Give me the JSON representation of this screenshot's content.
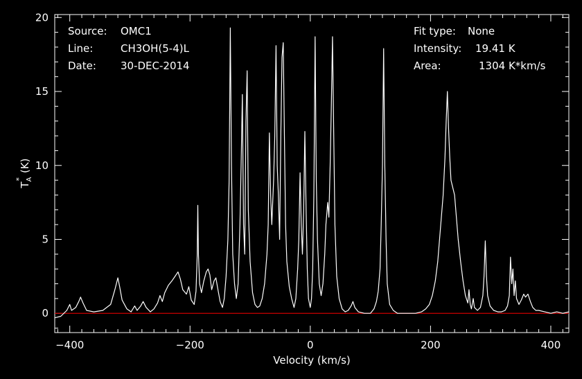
{
  "header_left": {
    "source_label": "Source:",
    "source_value": "OMC1",
    "line_label": "Line:",
    "line_value": "CH3OH(5-4)L",
    "date_label": "Date:",
    "date_value": "30-DEC-2014"
  },
  "header_right": {
    "fit_label": "Fit type:",
    "fit_value": "None",
    "intensity_label": "Intensity:",
    "intensity_value": "19.41 K",
    "area_label": "Area:",
    "area_value": "1304 K*km/s"
  },
  "colors": {
    "background": "#000000",
    "spectrum": "#ffffff",
    "baseline": "#cc0000",
    "axes": "#ffffff"
  },
  "chart_data": {
    "type": "line",
    "xlabel": "Velocity (km/s)",
    "ylabel": "T",
    "ylabel_sub": "A",
    "ylabel_sup": "*",
    "ylabel_unit": "(K)",
    "xlim": [
      -425,
      430
    ],
    "ylim": [
      -1.3,
      20.2
    ],
    "xticks": [
      -400,
      -200,
      0,
      200,
      400
    ],
    "xtick_labels": [
      "−400",
      "−200",
      "0",
      "200",
      "400"
    ],
    "yticks": [
      0,
      5,
      10,
      15,
      20
    ],
    "ytick_labels": [
      "0",
      "5",
      "10",
      "15",
      "20"
    ],
    "baseline_y": 0,
    "series": [
      {
        "points": [
          [
            -425,
            -0.3
          ],
          [
            -415,
            -0.2
          ],
          [
            -405,
            0.2
          ],
          [
            -400,
            0.6
          ],
          [
            -397,
            0.2
          ],
          [
            -390,
            0.4
          ],
          [
            -385,
            0.8
          ],
          [
            -382,
            1.1
          ],
          [
            -378,
            0.7
          ],
          [
            -372,
            0.2
          ],
          [
            -360,
            0.1
          ],
          [
            -345,
            0.2
          ],
          [
            -332,
            0.6
          ],
          [
            -325,
            1.6
          ],
          [
            -320,
            2.4
          ],
          [
            -317,
            1.8
          ],
          [
            -313,
            0.9
          ],
          [
            -305,
            0.3
          ],
          [
            -298,
            0.1
          ],
          [
            -292,
            0.5
          ],
          [
            -288,
            0.2
          ],
          [
            -282,
            0.5
          ],
          [
            -278,
            0.8
          ],
          [
            -273,
            0.4
          ],
          [
            -266,
            0.1
          ],
          [
            -260,
            0.3
          ],
          [
            -254,
            0.7
          ],
          [
            -250,
            1.2
          ],
          [
            -246,
            0.8
          ],
          [
            -242,
            1.4
          ],
          [
            -236,
            1.9
          ],
          [
            -230,
            2.2
          ],
          [
            -225,
            2.5
          ],
          [
            -220,
            2.8
          ],
          [
            -216,
            2.3
          ],
          [
            -212,
            1.6
          ],
          [
            -206,
            1.3
          ],
          [
            -202,
            1.8
          ],
          [
            -198,
            0.9
          ],
          [
            -193,
            0.6
          ],
          [
            -190,
            1.5
          ],
          [
            -188,
            4.0
          ],
          [
            -187,
            7.3
          ],
          [
            -186,
            4.0
          ],
          [
            -184,
            2.0
          ],
          [
            -181,
            1.4
          ],
          [
            -177,
            2.2
          ],
          [
            -173,
            2.8
          ],
          [
            -170,
            3.0
          ],
          [
            -167,
            2.6
          ],
          [
            -164,
            1.6
          ],
          [
            -160,
            2.2
          ],
          [
            -157,
            2.4
          ],
          [
            -154,
            1.7
          ],
          [
            -150,
            0.8
          ],
          [
            -146,
            0.4
          ],
          [
            -143,
            1.0
          ],
          [
            -140,
            2.5
          ],
          [
            -137,
            5.0
          ],
          [
            -135,
            9.0
          ],
          [
            -133,
            19.3
          ],
          [
            -131,
            10.0
          ],
          [
            -129,
            4.0
          ],
          [
            -126,
            2.0
          ],
          [
            -123,
            1.0
          ],
          [
            -120,
            2.0
          ],
          [
            -117,
            6.0
          ],
          [
            -115,
            10.0
          ],
          [
            -113,
            14.8
          ],
          [
            -111,
            6.0
          ],
          [
            -109,
            4.0
          ],
          [
            -107,
            13.0
          ],
          [
            -105,
            16.4
          ],
          [
            -103,
            7.0
          ],
          [
            -100,
            3.5
          ],
          [
            -96,
            1.4
          ],
          [
            -92,
            0.6
          ],
          [
            -88,
            0.4
          ],
          [
            -84,
            0.5
          ],
          [
            -80,
            1.0
          ],
          [
            -76,
            2.0
          ],
          [
            -72,
            4.0
          ],
          [
            -70,
            6.0
          ],
          [
            -68,
            12.2
          ],
          [
            -66,
            8.0
          ],
          [
            -64,
            6.0
          ],
          [
            -61,
            9.0
          ],
          [
            -59,
            12.0
          ],
          [
            -57,
            18.1
          ],
          [
            -55,
            10.0
          ],
          [
            -53,
            8.0
          ],
          [
            -51,
            5.0
          ],
          [
            -49,
            12.0
          ],
          [
            -47,
            17.3
          ],
          [
            -45,
            18.3
          ],
          [
            -43,
            12.0
          ],
          [
            -41,
            6.0
          ],
          [
            -39,
            3.5
          ],
          [
            -35,
            1.8
          ],
          [
            -31,
            1.0
          ],
          [
            -27,
            0.4
          ],
          [
            -24,
            1.0
          ],
          [
            -21,
            3.0
          ],
          [
            -19,
            5.0
          ],
          [
            -17,
            9.5
          ],
          [
            -15,
            6.0
          ],
          [
            -13,
            4.0
          ],
          [
            -11,
            7.0
          ],
          [
            -9,
            12.3
          ],
          [
            -7,
            7.0
          ],
          [
            -5,
            3.0
          ],
          [
            -3,
            1.0
          ],
          [
            0,
            0.4
          ],
          [
            2,
            1.0
          ],
          [
            4,
            3.0
          ],
          [
            6,
            8.0
          ],
          [
            8,
            18.7
          ],
          [
            10,
            9.0
          ],
          [
            12,
            5.0
          ],
          [
            15,
            2.0
          ],
          [
            18,
            1.2
          ],
          [
            21,
            2.0
          ],
          [
            24,
            4.0
          ],
          [
            26,
            6.0
          ],
          [
            29,
            7.5
          ],
          [
            31,
            6.5
          ],
          [
            33,
            10.0
          ],
          [
            35,
            14.0
          ],
          [
            37,
            18.7
          ],
          [
            39,
            12.0
          ],
          [
            41,
            6.0
          ],
          [
            44,
            2.5
          ],
          [
            48,
            1.0
          ],
          [
            53,
            0.3
          ],
          [
            58,
            0.1
          ],
          [
            63,
            0.2
          ],
          [
            68,
            0.5
          ],
          [
            71,
            0.8
          ],
          [
            74,
            0.4
          ],
          [
            80,
            0.1
          ],
          [
            90,
            0.0
          ],
          [
            100,
            0.0
          ],
          [
            106,
            0.3
          ],
          [
            110,
            0.8
          ],
          [
            113,
            1.5
          ],
          [
            116,
            3.0
          ],
          [
            118,
            6.0
          ],
          [
            120,
            10.0
          ],
          [
            122,
            17.9
          ],
          [
            124,
            10.0
          ],
          [
            126,
            5.0
          ],
          [
            128,
            2.0
          ],
          [
            132,
            0.6
          ],
          [
            138,
            0.2
          ],
          [
            145,
            0.0
          ],
          [
            160,
            0.0
          ],
          [
            175,
            0.0
          ],
          [
            185,
            0.1
          ],
          [
            192,
            0.3
          ],
          [
            198,
            0.6
          ],
          [
            203,
            1.2
          ],
          [
            208,
            2.2
          ],
          [
            212,
            3.5
          ],
          [
            215,
            5.0
          ],
          [
            218,
            6.5
          ],
          [
            221,
            8.0
          ],
          [
            224,
            10.5
          ],
          [
            226,
            13.0
          ],
          [
            228,
            15.0
          ],
          [
            230,
            12.5
          ],
          [
            232,
            10.5
          ],
          [
            234,
            9.0
          ],
          [
            237,
            8.5
          ],
          [
            240,
            8.0
          ],
          [
            243,
            6.5
          ],
          [
            246,
            5.0
          ],
          [
            250,
            3.5
          ],
          [
            254,
            2.2
          ],
          [
            258,
            1.2
          ],
          [
            262,
            0.7
          ],
          [
            264,
            1.6
          ],
          [
            266,
            0.6
          ],
          [
            268,
            0.3
          ],
          [
            271,
            1.0
          ],
          [
            273,
            0.4
          ],
          [
            278,
            0.2
          ],
          [
            283,
            0.4
          ],
          [
            287,
            1.2
          ],
          [
            289,
            2.5
          ],
          [
            291,
            4.9
          ],
          [
            293,
            2.5
          ],
          [
            295,
            1.2
          ],
          [
            299,
            0.5
          ],
          [
            305,
            0.2
          ],
          [
            312,
            0.1
          ],
          [
            318,
            0.1
          ],
          [
            324,
            0.2
          ],
          [
            328,
            0.5
          ],
          [
            331,
            1.2
          ],
          [
            333,
            3.8
          ],
          [
            335,
            2.0
          ],
          [
            337,
            3.0
          ],
          [
            339,
            1.2
          ],
          [
            341,
            2.2
          ],
          [
            343,
            1.0
          ],
          [
            347,
            0.6
          ],
          [
            351,
            0.9
          ],
          [
            355,
            1.3
          ],
          [
            358,
            1.1
          ],
          [
            362,
            1.3
          ],
          [
            366,
            0.8
          ],
          [
            370,
            0.4
          ],
          [
            375,
            0.2
          ],
          [
            380,
            0.2
          ],
          [
            390,
            0.1
          ],
          [
            400,
            0.0
          ],
          [
            410,
            0.1
          ],
          [
            420,
            0.0
          ],
          [
            430,
            0.1
          ]
        ]
      }
    ]
  }
}
